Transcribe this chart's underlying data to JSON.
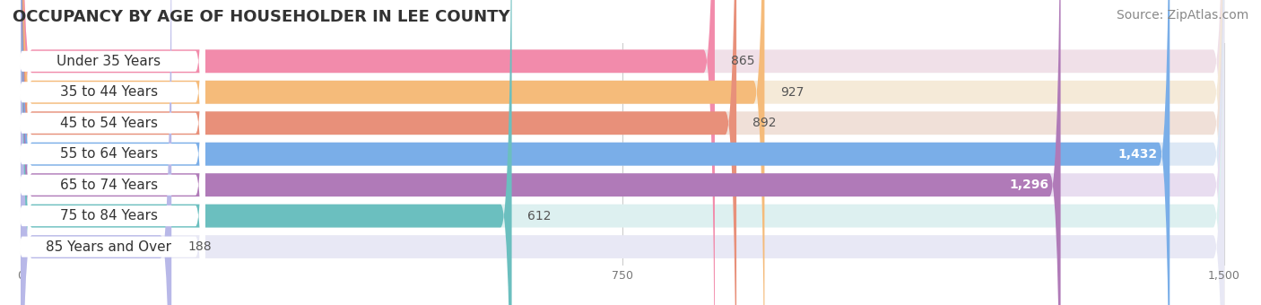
{
  "title": "OCCUPANCY BY AGE OF HOUSEHOLDER IN LEE COUNTY",
  "source": "Source: ZipAtlas.com",
  "categories": [
    "Under 35 Years",
    "35 to 44 Years",
    "45 to 54 Years",
    "55 to 64 Years",
    "65 to 74 Years",
    "75 to 84 Years",
    "85 Years and Over"
  ],
  "values": [
    865,
    927,
    892,
    1432,
    1296,
    612,
    188
  ],
  "bar_colors": [
    "#f28bab",
    "#f5bb7a",
    "#e8907a",
    "#7aaee8",
    "#b07ab8",
    "#6bbfbf",
    "#b8b8e8"
  ],
  "bar_bg_colors": [
    "#f0e0e8",
    "#f5ead8",
    "#f0e0d8",
    "#dde8f5",
    "#e8ddf0",
    "#ddf0f0",
    "#e8e8f5"
  ],
  "xlim": [
    0,
    1500
  ],
  "xticks": [
    0,
    750,
    1500
  ],
  "xticklabels": [
    "0",
    "750",
    "1,500"
  ],
  "title_fontsize": 13,
  "source_fontsize": 10,
  "label_fontsize": 11,
  "value_fontsize": 10,
  "background_color": "#ffffff"
}
